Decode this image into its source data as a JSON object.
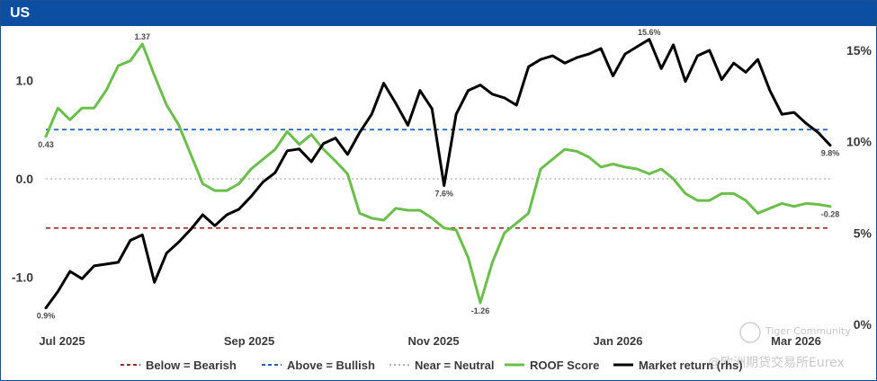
{
  "header": {
    "title": "US"
  },
  "watermark": {
    "line1": "Tiger Community",
    "line2": "@欧洲期货交易所Eurex"
  },
  "colors": {
    "header_bg": "#0b4ea2",
    "bearish": "#a52a2a",
    "bullish": "#1f5fbf",
    "neutral": "#b0b0b0",
    "roof": "#6abf4b",
    "market": "#000000"
  },
  "chart_data": {
    "type": "line",
    "x_ticks": [
      "Jul 2025",
      "Sep 2025",
      "Nov 2025",
      "Jan 2026",
      "Mar 2026"
    ],
    "y_left": {
      "range": [
        -1.35,
        1.45
      ],
      "ticks": [
        "1.0",
        "0.0",
        "-1.0"
      ],
      "tick_values": [
        1.0,
        0.0,
        -1.0
      ]
    },
    "y_right": {
      "range": [
        0,
        16
      ],
      "ticks": [
        "15%",
        "10%",
        "5%",
        "0%"
      ],
      "tick_values": [
        15,
        10,
        5,
        0
      ]
    },
    "reference_lines": [
      {
        "name": "Below = Bearish",
        "value": -0.5,
        "style": "dashed",
        "color": "#a52a2a"
      },
      {
        "name": "Above = Bullish",
        "value": 0.5,
        "style": "dashed",
        "color": "#1f5fbf"
      },
      {
        "name": "Near = Neutral",
        "value": 0.0,
        "style": "dotted",
        "color": "#b0b0b0"
      }
    ],
    "series": [
      {
        "name": "ROOF Score",
        "axis": "left",
        "color": "#6abf4b",
        "x": [
          "2025-07-01",
          "2025-07-05",
          "2025-07-09",
          "2025-07-13",
          "2025-07-17",
          "2025-07-21",
          "2025-07-25",
          "2025-07-29",
          "2025-08-02",
          "2025-08-06",
          "2025-08-10",
          "2025-08-14",
          "2025-08-18",
          "2025-08-22",
          "2025-08-26",
          "2025-08-30",
          "2025-09-03",
          "2025-09-07",
          "2025-09-11",
          "2025-09-15",
          "2025-09-19",
          "2025-09-23",
          "2025-09-27",
          "2025-10-01",
          "2025-10-05",
          "2025-10-09",
          "2025-10-13",
          "2025-10-17",
          "2025-10-21",
          "2025-10-25",
          "2025-10-29",
          "2025-11-02",
          "2025-11-06",
          "2025-11-10",
          "2025-11-14",
          "2025-11-18",
          "2025-11-22",
          "2025-11-26",
          "2025-11-30",
          "2025-12-04",
          "2025-12-08",
          "2025-12-12",
          "2025-12-16",
          "2025-12-20",
          "2025-12-24",
          "2025-12-28",
          "2026-01-01",
          "2026-01-05",
          "2026-01-09",
          "2026-01-13",
          "2026-01-17",
          "2026-01-21",
          "2026-01-25",
          "2026-01-29",
          "2026-02-02",
          "2026-02-06",
          "2026-02-10",
          "2026-02-14",
          "2026-02-18",
          "2026-02-22",
          "2026-02-26",
          "2026-03-02",
          "2026-03-06",
          "2026-03-10",
          "2026-03-14",
          "2026-03-18"
        ],
        "values": [
          0.43,
          0.72,
          0.6,
          0.72,
          0.72,
          0.9,
          1.15,
          1.2,
          1.37,
          1.05,
          0.75,
          0.55,
          0.25,
          -0.05,
          -0.12,
          -0.12,
          -0.05,
          0.1,
          0.2,
          0.3,
          0.48,
          0.35,
          0.45,
          0.3,
          0.18,
          0.05,
          -0.35,
          -0.4,
          -0.42,
          -0.3,
          -0.32,
          -0.32,
          -0.4,
          -0.5,
          -0.52,
          -0.8,
          -1.26,
          -0.85,
          -0.55,
          -0.45,
          -0.35,
          0.1,
          0.2,
          0.3,
          0.28,
          0.22,
          0.12,
          0.15,
          0.12,
          0.1,
          0.05,
          0.1,
          0.0,
          -0.15,
          -0.22,
          -0.22,
          -0.15,
          -0.15,
          -0.22,
          -0.35,
          -0.3,
          -0.25,
          -0.28,
          -0.25,
          -0.26,
          -0.28
        ],
        "data_labels": [
          {
            "index": 0,
            "text": "0.43",
            "pos": "below"
          },
          {
            "index": 8,
            "text": "1.37",
            "pos": "above"
          },
          {
            "index": 36,
            "text": "-1.26",
            "pos": "below"
          },
          {
            "index": 65,
            "text": "-0.28",
            "pos": "below"
          }
        ]
      },
      {
        "name": "Market return (rhs)",
        "axis": "right",
        "color": "#000000",
        "x": [
          "2025-07-01",
          "2025-07-05",
          "2025-07-09",
          "2025-07-13",
          "2025-07-17",
          "2025-07-21",
          "2025-07-25",
          "2025-07-29",
          "2025-08-02",
          "2025-08-06",
          "2025-08-10",
          "2025-08-14",
          "2025-08-18",
          "2025-08-22",
          "2025-08-26",
          "2025-08-30",
          "2025-09-03",
          "2025-09-07",
          "2025-09-11",
          "2025-09-15",
          "2025-09-19",
          "2025-09-23",
          "2025-09-27",
          "2025-10-01",
          "2025-10-05",
          "2025-10-09",
          "2025-10-13",
          "2025-10-17",
          "2025-10-21",
          "2025-10-25",
          "2025-10-29",
          "2025-11-02",
          "2025-11-06",
          "2025-11-10",
          "2025-11-14",
          "2025-11-18",
          "2025-11-22",
          "2025-11-26",
          "2025-11-30",
          "2025-12-04",
          "2025-12-08",
          "2025-12-12",
          "2025-12-16",
          "2025-12-20",
          "2025-12-24",
          "2025-12-28",
          "2026-01-01",
          "2026-01-05",
          "2026-01-09",
          "2026-01-13",
          "2026-01-17",
          "2026-01-21",
          "2026-01-25",
          "2026-01-29",
          "2026-02-02",
          "2026-02-06",
          "2026-02-10",
          "2026-02-14",
          "2026-02-18",
          "2026-02-22",
          "2026-02-26",
          "2026-03-02",
          "2026-03-06",
          "2026-03-10",
          "2026-03-14",
          "2026-03-18"
        ],
        "values": [
          0.9,
          1.8,
          2.9,
          2.5,
          3.2,
          3.3,
          3.4,
          4.6,
          4.9,
          2.3,
          3.9,
          4.5,
          5.2,
          6.0,
          5.4,
          6.0,
          6.3,
          7.0,
          7.8,
          8.3,
          9.5,
          9.6,
          8.9,
          9.9,
          10.2,
          9.3,
          10.5,
          11.5,
          13.2,
          12.1,
          10.9,
          12.8,
          11.8,
          7.6,
          11.5,
          12.8,
          13.1,
          12.6,
          12.4,
          12.0,
          14.1,
          14.5,
          14.7,
          14.3,
          14.6,
          14.8,
          15.1,
          13.6,
          14.8,
          15.2,
          15.6,
          14.0,
          15.3,
          13.3,
          14.7,
          15.0,
          13.4,
          14.3,
          13.8,
          14.5,
          12.8,
          11.5,
          11.6,
          11.0,
          10.5,
          9.8
        ],
        "data_labels": [
          {
            "index": 0,
            "text": "0.9%",
            "pos": "below"
          },
          {
            "index": 33,
            "text": "7.6%",
            "pos": "below"
          },
          {
            "index": 50,
            "text": "15.6%",
            "pos": "above"
          },
          {
            "index": 65,
            "text": "9.8%",
            "pos": "below"
          }
        ]
      }
    ],
    "legend": {
      "placement": "bottom",
      "order": [
        "Below = Bearish",
        "Above = Bullish",
        "Near = Neutral",
        "ROOF Score",
        "Market return (rhs)"
      ]
    }
  }
}
